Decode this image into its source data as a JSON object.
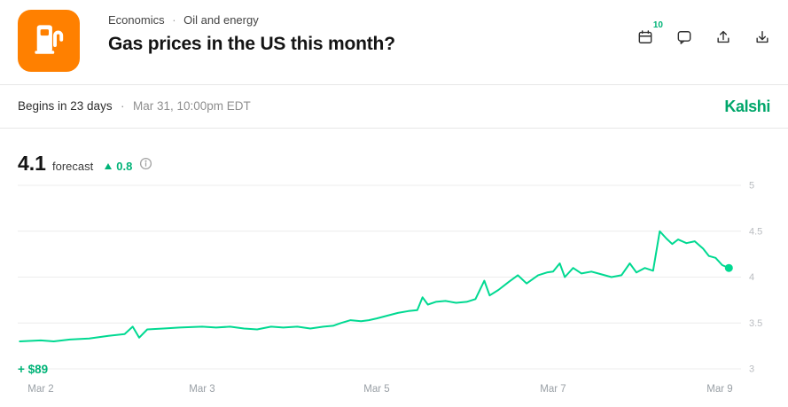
{
  "breadcrumb": {
    "category": "Economics",
    "dot": "·",
    "subcategory": "Oil and energy"
  },
  "header": {
    "title": "Gas prices in the US this month?",
    "calendar_badge": "10",
    "icons": [
      "gas-pump-icon",
      "calendar-icon",
      "comment-icon",
      "share-icon",
      "download-icon"
    ]
  },
  "subheader": {
    "begins": "Begins in 23 days",
    "dot": "·",
    "datetime": "Mar 31, 10:00pm EDT"
  },
  "brand": {
    "logo": "Kalshi"
  },
  "forecast": {
    "value": "4.1",
    "label": "forecast",
    "delta": "0.8",
    "delta_direction": "up"
  },
  "colors": {
    "icon_orange": "#ff8000",
    "line_green": "#00d991",
    "delta_green": "#00b377",
    "brand_green": "#00a66a"
  },
  "chart_data": {
    "type": "line",
    "title": "",
    "xlabel": "",
    "ylabel": "",
    "ylim": [
      3,
      5
    ],
    "grid": true,
    "legend": false,
    "line_color": "#00d991",
    "plus_label": "+ $89",
    "y_ticks": [
      5,
      4.5,
      4,
      3.5,
      3
    ],
    "x_ticks": [
      {
        "label": "Mar 2",
        "day": 2
      },
      {
        "label": "Mar 3",
        "day": 3
      },
      {
        "label": "Mar 5",
        "day": 5
      },
      {
        "label": "Mar 7",
        "day": 7
      },
      {
        "label": "Mar 9",
        "day": 9
      }
    ],
    "series": [
      {
        "name": "forecast",
        "points": [
          [
            1.87,
            3.3
          ],
          [
            2.0,
            3.31
          ],
          [
            2.08,
            3.3
          ],
          [
            2.18,
            3.32
          ],
          [
            2.3,
            3.33
          ],
          [
            2.42,
            3.36
          ],
          [
            2.52,
            3.38
          ],
          [
            2.57,
            3.46
          ],
          [
            2.61,
            3.34
          ],
          [
            2.66,
            3.43
          ],
          [
            2.76,
            3.44
          ],
          [
            2.86,
            3.45
          ],
          [
            3.0,
            3.46
          ],
          [
            3.16,
            3.45
          ],
          [
            3.32,
            3.46
          ],
          [
            3.48,
            3.44
          ],
          [
            3.63,
            3.43
          ],
          [
            3.79,
            3.46
          ],
          [
            3.93,
            3.45
          ],
          [
            4.09,
            3.46
          ],
          [
            4.24,
            3.44
          ],
          [
            4.39,
            3.46
          ],
          [
            4.5,
            3.47
          ],
          [
            4.59,
            3.5
          ],
          [
            4.7,
            3.53
          ],
          [
            4.82,
            3.52
          ],
          [
            4.91,
            3.53
          ],
          [
            5.0,
            3.55
          ],
          [
            5.12,
            3.58
          ],
          [
            5.24,
            3.61
          ],
          [
            5.36,
            3.63
          ],
          [
            5.46,
            3.64
          ],
          [
            5.52,
            3.78
          ],
          [
            5.58,
            3.7
          ],
          [
            5.67,
            3.73
          ],
          [
            5.78,
            3.74
          ],
          [
            5.9,
            3.72
          ],
          [
            6.02,
            3.73
          ],
          [
            6.12,
            3.76
          ],
          [
            6.22,
            3.96
          ],
          [
            6.28,
            3.8
          ],
          [
            6.38,
            3.86
          ],
          [
            6.5,
            3.95
          ],
          [
            6.6,
            4.02
          ],
          [
            6.7,
            3.93
          ],
          [
            6.83,
            4.02
          ],
          [
            6.93,
            4.05
          ],
          [
            7.0,
            4.06
          ],
          [
            7.08,
            4.15
          ],
          [
            7.14,
            4.0
          ],
          [
            7.24,
            4.1
          ],
          [
            7.34,
            4.04
          ],
          [
            7.46,
            4.06
          ],
          [
            7.58,
            4.03
          ],
          [
            7.7,
            4.0
          ],
          [
            7.82,
            4.02
          ],
          [
            7.92,
            4.15
          ],
          [
            8.0,
            4.05
          ],
          [
            8.1,
            4.1
          ],
          [
            8.2,
            4.07
          ],
          [
            8.28,
            4.5
          ],
          [
            8.36,
            4.42
          ],
          [
            8.43,
            4.36
          ],
          [
            8.5,
            4.41
          ],
          [
            8.6,
            4.37
          ],
          [
            8.7,
            4.39
          ],
          [
            8.8,
            4.31
          ],
          [
            8.87,
            4.23
          ],
          [
            8.95,
            4.21
          ],
          [
            9.03,
            4.13
          ],
          [
            9.11,
            4.1
          ]
        ]
      }
    ]
  }
}
